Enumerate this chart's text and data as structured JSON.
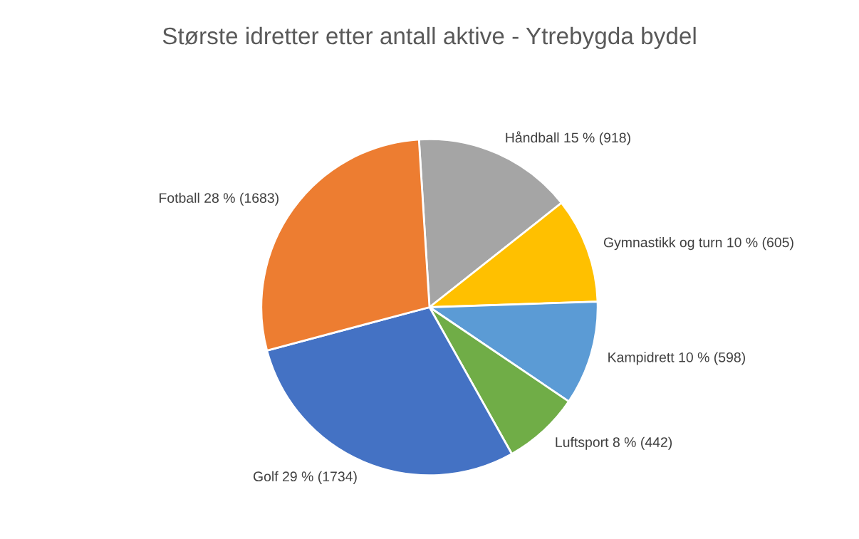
{
  "chart_data": {
    "type": "pie",
    "title": "Største idretter etter antall aktive - Ytrebygda bydel",
    "categories": [
      "Håndball",
      "Gymnastikk og turn",
      "Kampidrett",
      "Luftsport",
      "Golf",
      "Fotball"
    ],
    "values": [
      918,
      605,
      598,
      442,
      1734,
      1683
    ],
    "value_labels": [
      "15 % (918)",
      "10 % (605)",
      "10 % (598)",
      "8 % (442)",
      "29 % (1734)",
      "28 % (1683)"
    ],
    "colors": [
      "#a5a5a5",
      "#ffc000",
      "#5b9bd5",
      "#70ad47",
      "#4472c4",
      "#ed7d31"
    ],
    "legend": false
  }
}
